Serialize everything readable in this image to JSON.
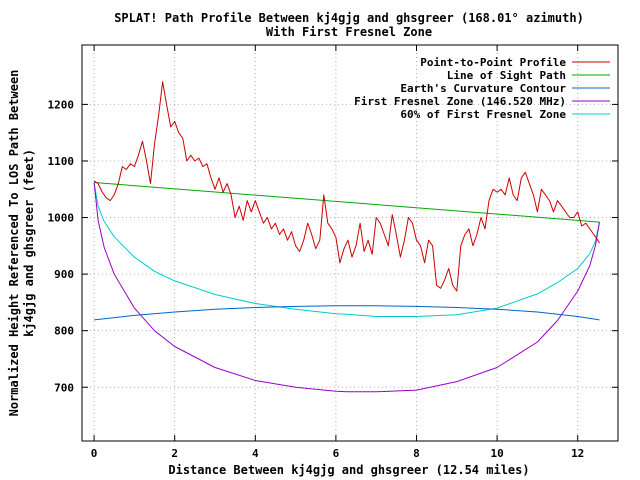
{
  "chart_data": {
    "type": "line",
    "title": "SPLAT! Path Profile Between kj4gjg and ghsgreer (168.01° azimuth)",
    "subtitle": "With First Fresnel Zone",
    "xlabel": "Distance Between kj4gjg and ghsgreer (12.54 miles)",
    "ylabel_line1": "Normalized Height Referenced To LOS Path Between",
    "ylabel_line2": "kj4gjg and ghsgreer (feet)",
    "xlim": [
      -0.3,
      13.0
    ],
    "ylim": [
      605,
      1305
    ],
    "x_ticks": [
      0,
      2,
      4,
      6,
      8,
      10,
      12
    ],
    "y_ticks": [
      700,
      800,
      900,
      1000,
      1100,
      1200
    ],
    "grid": true,
    "legend_position": "top-right",
    "series": [
      {
        "name": "Point-to-Point Profile",
        "color": "#cc0000",
        "x": [
          0.0,
          0.1,
          0.2,
          0.3,
          0.4,
          0.5,
          0.6,
          0.7,
          0.8,
          0.9,
          1.0,
          1.1,
          1.2,
          1.3,
          1.4,
          1.5,
          1.6,
          1.7,
          1.8,
          1.9,
          2.0,
          2.1,
          2.2,
          2.3,
          2.4,
          2.5,
          2.6,
          2.7,
          2.8,
          2.9,
          3.0,
          3.1,
          3.2,
          3.3,
          3.4,
          3.5,
          3.6,
          3.7,
          3.8,
          3.9,
          4.0,
          4.1,
          4.2,
          4.3,
          4.4,
          4.5,
          4.6,
          4.7,
          4.8,
          4.9,
          5.0,
          5.1,
          5.2,
          5.3,
          5.4,
          5.5,
          5.6,
          5.7,
          5.8,
          5.9,
          6.0,
          6.1,
          6.2,
          6.3,
          6.4,
          6.5,
          6.6,
          6.7,
          6.8,
          6.9,
          7.0,
          7.1,
          7.2,
          7.3,
          7.4,
          7.5,
          7.6,
          7.7,
          7.8,
          7.9,
          8.0,
          8.1,
          8.2,
          8.3,
          8.4,
          8.5,
          8.6,
          8.7,
          8.8,
          8.9,
          9.0,
          9.1,
          9.2,
          9.3,
          9.4,
          9.5,
          9.6,
          9.7,
          9.8,
          9.9,
          10.0,
          10.1,
          10.2,
          10.3,
          10.4,
          10.5,
          10.6,
          10.7,
          10.8,
          10.9,
          11.0,
          11.1,
          11.2,
          11.3,
          11.4,
          11.5,
          11.6,
          11.7,
          11.8,
          11.9,
          12.0,
          12.1,
          12.2,
          12.3,
          12.4,
          12.5,
          12.54
        ],
        "values": [
          1065,
          1060,
          1045,
          1035,
          1030,
          1040,
          1060,
          1090,
          1085,
          1095,
          1090,
          1110,
          1135,
          1100,
          1060,
          1130,
          1180,
          1240,
          1200,
          1160,
          1170,
          1150,
          1140,
          1100,
          1110,
          1100,
          1105,
          1090,
          1095,
          1070,
          1050,
          1070,
          1045,
          1060,
          1040,
          1000,
          1020,
          995,
          1030,
          1010,
          1030,
          1010,
          990,
          1000,
          980,
          990,
          970,
          980,
          960,
          975,
          950,
          940,
          960,
          990,
          970,
          945,
          960,
          1040,
          990,
          980,
          965,
          920,
          945,
          960,
          930,
          950,
          990,
          940,
          960,
          935,
          1000,
          990,
          970,
          950,
          1005,
          970,
          930,
          960,
          1000,
          990,
          960,
          950,
          920,
          960,
          950,
          880,
          875,
          890,
          910,
          880,
          870,
          950,
          970,
          980,
          950,
          970,
          1000,
          980,
          1030,
          1050,
          1045,
          1050,
          1040,
          1070,
          1040,
          1030,
          1070,
          1080,
          1060,
          1040,
          1010,
          1050,
          1040,
          1030,
          1010,
          1030,
          1020,
          1010,
          1000,
          1000,
          1010,
          985,
          990,
          980,
          970,
          960,
          955
        ]
      },
      {
        "name": "Line of Sight Path",
        "color": "#00aa00",
        "x": [
          0.0,
          12.54
        ],
        "values": [
          1062,
          992
        ]
      },
      {
        "name": "Earth's Curvature Contour",
        "color": "#0066cc",
        "x": [
          0.0,
          1.0,
          2.0,
          3.0,
          4.0,
          5.0,
          6.0,
          6.27,
          7.0,
          8.0,
          9.0,
          10.0,
          11.0,
          12.0,
          12.54
        ],
        "values": [
          819,
          827,
          833,
          838,
          841,
          843,
          844,
          844,
          844,
          843,
          841,
          838,
          833,
          825,
          819
        ]
      },
      {
        "name": "First Fresnel Zone (146.520 MHz)",
        "color": "#9900cc",
        "x": [
          0.0,
          0.1,
          0.25,
          0.5,
          1.0,
          1.5,
          2.0,
          3.0,
          4.0,
          5.0,
          6.0,
          6.27,
          7.0,
          8.0,
          9.0,
          10.0,
          11.0,
          11.5,
          12.0,
          12.3,
          12.44,
          12.54
        ],
        "values": [
          1062,
          995,
          947,
          900,
          840,
          800,
          772,
          735,
          712,
          700,
          693,
          692,
          692,
          695,
          710,
          735,
          780,
          818,
          870,
          915,
          950,
          992
        ]
      },
      {
        "name": "60% of First Fresnel Zone",
        "color": "#00cccc",
        "x": [
          0.0,
          0.1,
          0.25,
          0.5,
          1.0,
          1.5,
          2.0,
          3.0,
          4.0,
          5.0,
          6.0,
          6.27,
          7.0,
          8.0,
          9.0,
          10.0,
          11.0,
          11.5,
          12.0,
          12.3,
          12.44,
          12.54
        ],
        "values": [
          1062,
          1020,
          993,
          966,
          930,
          905,
          888,
          864,
          848,
          838,
          830,
          829,
          825,
          825,
          828,
          840,
          865,
          885,
          910,
          936,
          958,
          992
        ]
      }
    ]
  }
}
